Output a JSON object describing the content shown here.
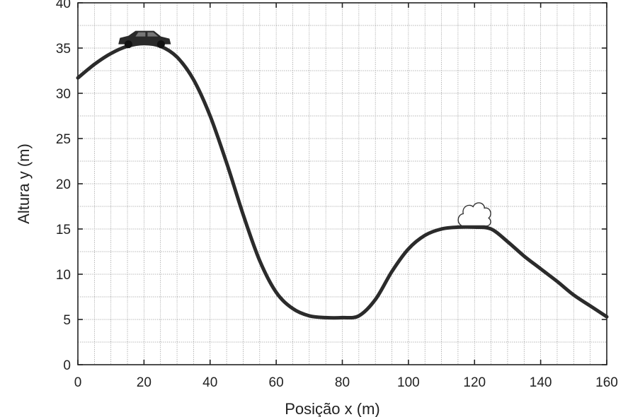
{
  "chart_data": {
    "type": "line",
    "title": "",
    "xlabel": "Posição  x (m)",
    "ylabel": "Altura  y (m)",
    "xlim": [
      0,
      160
    ],
    "ylim": [
      0,
      40
    ],
    "x_ticks": [
      0,
      20,
      40,
      60,
      80,
      100,
      120,
      140,
      160
    ],
    "y_ticks": [
      0,
      5,
      10,
      15,
      20,
      25,
      30,
      35,
      40
    ],
    "x_tick_labels": [
      "0",
      "20",
      "40",
      "60",
      "80",
      "100",
      "120",
      "140",
      "160"
    ],
    "y_tick_labels": [
      "0",
      "5",
      "10",
      "15",
      "20",
      "25",
      "30",
      "35",
      "40"
    ],
    "grid": true,
    "grid_minor_x_step": 5,
    "grid_minor_y_step": 2.5,
    "series": [
      {
        "x": [
          0,
          5,
          10,
          15,
          20,
          25,
          30,
          35,
          40,
          45,
          50,
          55,
          60,
          65,
          70,
          75,
          80,
          85,
          90,
          95,
          100,
          105,
          110,
          115,
          120,
          125,
          130,
          135,
          140,
          145,
          150,
          155,
          160
        ],
        "y": [
          31.7,
          33.2,
          34.4,
          35.2,
          35.5,
          35.2,
          34.0,
          31.5,
          27.5,
          22.3,
          16.6,
          11.5,
          8.0,
          6.2,
          5.4,
          5.2,
          5.2,
          5.4,
          7.2,
          10.3,
          12.8,
          14.3,
          15.0,
          15.2,
          15.2,
          15.0,
          13.6,
          12.0,
          10.6,
          9.2,
          7.7,
          6.5,
          5.3
        ]
      }
    ],
    "color": "#2b2b2b",
    "annotations": [
      {
        "name": "car-icon",
        "x": 20,
        "y": 35.5
      },
      {
        "name": "bush-icon",
        "x": 120,
        "y": 15.2
      }
    ]
  }
}
